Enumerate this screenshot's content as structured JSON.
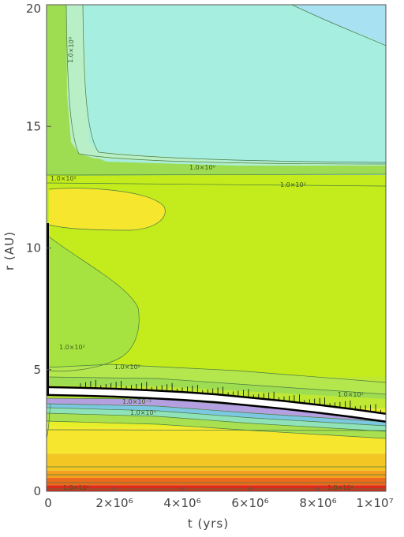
{
  "chart_data": {
    "type": "heatmap",
    "xlabel": "t (yrs)",
    "ylabel": "r (AU)",
    "xlim": [
      0,
      10000000
    ],
    "ylim": [
      0,
      20
    ],
    "x_tick_values": [
      0,
      2000000,
      4000000,
      6000000,
      8000000,
      10000000
    ],
    "x_tick_labels": [
      "0",
      "2×10⁶",
      "4×10⁶",
      "6×10⁶",
      "8×10⁶",
      "1×10⁷"
    ],
    "y_tick_values": [
      0,
      5,
      10,
      15,
      20
    ],
    "y_tick_labels": [
      "0",
      "5",
      "10",
      "15",
      "20"
    ],
    "contour_labels": [
      "1.0×10⁰",
      "1.0×10⁰",
      "1.0×10²",
      "1.0×10²",
      "1.0×10²",
      "1.0×10²",
      "1.0×10²",
      "1.0×10¹",
      "1.0×10⁻¹",
      "1.0×10⁴",
      "1.0×10⁴"
    ],
    "ice_line": {
      "t": [
        0,
        1000000,
        2000000,
        3000000,
        4000000,
        5000000,
        6000000,
        7000000,
        8000000,
        9000000,
        10000000
      ],
      "r": [
        4.25,
        4.22,
        4.18,
        4.12,
        4.05,
        3.95,
        3.82,
        3.68,
        3.52,
        3.35,
        3.15
      ]
    },
    "bands": [
      {
        "r": [
          0.0,
          0.25
        ],
        "color": "#dd2a1a"
      },
      {
        "r": [
          0.25,
          0.55
        ],
        "color": "#ec6a1c"
      },
      {
        "r": [
          0.55,
          0.85
        ],
        "color": "#f3a01e"
      },
      {
        "r": [
          0.85,
          1.55
        ],
        "color": "#f3c624"
      },
      {
        "r": [
          1.55,
          2.6
        ],
        "color": "#f6e62e"
      },
      {
        "r": [
          2.6,
          3.4
        ],
        "color": "#e8ee28"
      },
      {
        "r": [
          3.4,
          4.7
        ],
        "color": "#bfe833"
      },
      {
        "r": [
          4.7,
          13.0
        ],
        "color": "#c4ec1c"
      },
      {
        "r": [
          13.0,
          20.0
        ],
        "color": "#a6eedf"
      }
    ],
    "colors": {
      "red": "#dd2a1a",
      "orange": "#ec6a1c",
      "amber": "#f3a01e",
      "yellow": "#f6e62e",
      "yellow_green": "#c4ec1c",
      "green": "#9edd52",
      "light_green": "#b4e64e",
      "teal": "#b8efc7",
      "cyan": "#a6eedf",
      "light_blue": "#a8e2f2",
      "purple": "#b4a0e0",
      "white_band": "#ffffff",
      "black_line": "#000000"
    }
  }
}
